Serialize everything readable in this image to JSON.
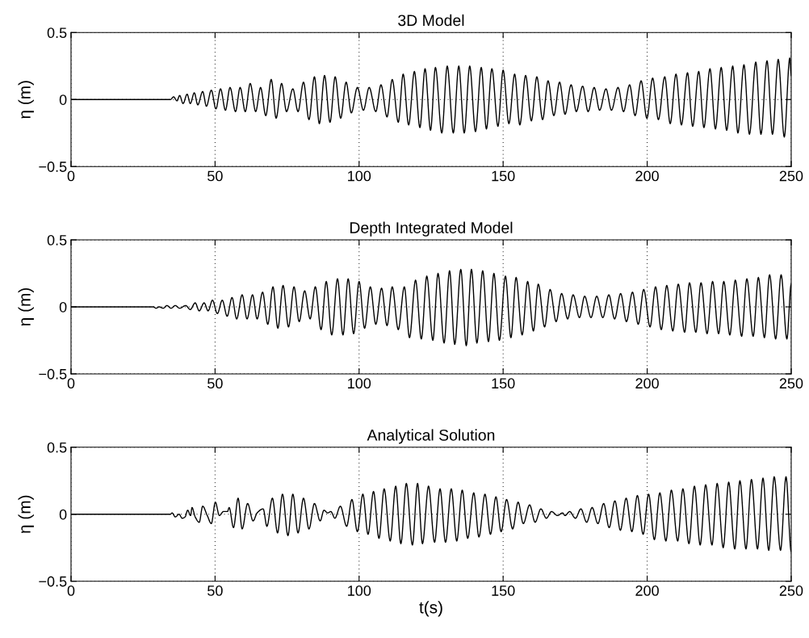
{
  "chart_data": [
    {
      "type": "line",
      "title": "3D Model",
      "ylabel": "η (m)",
      "xlim": [
        0,
        250
      ],
      "xticks": [
        0,
        50,
        100,
        150,
        200,
        250
      ],
      "ylim": [
        -0.5,
        0.5
      ],
      "yticks": [
        -0.5,
        0,
        0.5
      ],
      "grid": true,
      "series": [
        {
          "color": "#000000",
          "x": [
            0,
            34.5,
            35.6,
            36.8,
            37.7,
            38.9,
            40.3,
            41.4,
            42.8,
            44.0,
            45.7,
            47.0,
            48.7,
            50.3,
            51.9,
            53.6,
            55.2,
            57.1,
            58.7,
            60.5,
            62.2,
            64.1,
            65.8,
            67.6,
            69.5,
            71.2,
            73.1,
            74.8,
            77.0,
            78.8,
            80.7,
            82.6,
            84.5,
            86.2,
            88.0,
            89.9,
            91.7,
            93.6,
            95.5,
            97.3,
            99.4,
            101.5,
            103.5,
            105.8,
            107.6,
            109.7,
            111.5,
            113.6,
            115.3,
            117.2,
            119.2,
            121.1,
            122.9,
            124.8,
            126.5,
            128.7,
            130.6,
            132.7,
            134.6,
            136.5,
            138.4,
            140.4,
            142.4,
            144.2,
            146.1,
            148.2,
            150.0,
            152.0,
            154.0,
            155.8,
            157.8,
            159.8,
            161.7,
            163.7,
            165.6,
            167.6,
            169.6,
            171.5,
            173.6,
            175.4,
            177.6,
            179.5,
            181.6,
            183.5,
            185.7,
            187.6,
            189.9,
            191.8,
            193.9,
            195.8,
            197.9,
            199.9,
            201.9,
            203.9,
            206.1,
            208.0,
            210.0,
            211.9,
            214.0,
            215.8,
            217.9,
            219.7,
            221.8,
            223.7,
            225.7,
            227.6,
            229.7,
            231.5,
            233.6,
            235.5,
            237.7,
            239.5,
            241.6,
            243.5,
            245.5,
            247.6,
            249.5,
            250
          ],
          "values": [
            0,
            0,
            0.02,
            -0.01,
            0.03,
            -0.03,
            0.04,
            -0.03,
            0.05,
            -0.04,
            0.06,
            -0.05,
            0.07,
            -0.07,
            0.08,
            -0.08,
            0.09,
            -0.09,
            0.09,
            -0.09,
            0.12,
            -0.09,
            0.09,
            -0.12,
            0.15,
            -0.14,
            0.12,
            -0.09,
            0.08,
            -0.09,
            0.13,
            -0.15,
            0.17,
            -0.18,
            0.18,
            -0.17,
            0.17,
            -0.14,
            0.13,
            -0.1,
            0.09,
            -0.08,
            0.09,
            -0.09,
            0.11,
            -0.13,
            0.15,
            -0.17,
            0.19,
            -0.19,
            0.21,
            -0.21,
            0.23,
            -0.23,
            0.24,
            -0.25,
            0.25,
            -0.25,
            0.25,
            -0.25,
            0.25,
            -0.24,
            0.24,
            -0.22,
            0.23,
            -0.2,
            0.22,
            -0.18,
            0.19,
            -0.19,
            0.18,
            -0.16,
            0.17,
            -0.15,
            0.14,
            -0.12,
            0.13,
            -0.11,
            0.11,
            -0.09,
            0.1,
            -0.09,
            0.09,
            -0.08,
            0.08,
            -0.08,
            0.09,
            -0.09,
            0.11,
            -0.12,
            0.14,
            -0.14,
            0.16,
            -0.15,
            0.17,
            -0.18,
            0.19,
            -0.19,
            0.2,
            -0.2,
            0.21,
            -0.21,
            0.23,
            -0.22,
            0.24,
            -0.23,
            0.25,
            -0.25,
            0.26,
            -0.26,
            0.28,
            -0.26,
            0.29,
            -0.26,
            0.3,
            -0.28,
            0.31,
            0.18
          ]
        }
      ]
    },
    {
      "type": "line",
      "title": "Depth Integrated Model",
      "ylabel": "η (m)",
      "xlim": [
        0,
        250
      ],
      "xticks": [
        0,
        50,
        100,
        150,
        200,
        250
      ],
      "ylim": [
        -0.5,
        0.5
      ],
      "yticks": [
        -0.5,
        0,
        0.5
      ],
      "grid": true,
      "series": [
        {
          "color": "#000000",
          "x": [
            0,
            25,
            28.6,
            29.5,
            30.6,
            32.0,
            33.3,
            34.7,
            36.2,
            37.7,
            39.8,
            41.4,
            43.1,
            44.5,
            46.2,
            47.6,
            49.1,
            50.8,
            52.5,
            54.2,
            55.9,
            57.5,
            59.4,
            61.1,
            63.0,
            64.6,
            66.5,
            68.3,
            70.1,
            71.8,
            73.6,
            75.5,
            77.4,
            79.2,
            81.1,
            83.0,
            84.8,
            86.8,
            88.6,
            90.5,
            92.5,
            94.4,
            96.2,
            98.1,
            100.0,
            101.9,
            103.9,
            105.8,
            107.8,
            109.7,
            111.5,
            113.6,
            115.7,
            117.5,
            119.6,
            121.6,
            123.5,
            125.6,
            127.4,
            129.5,
            131.4,
            133.2,
            135.3,
            137.2,
            139.0,
            140.9,
            142.9,
            144.9,
            146.8,
            148.7,
            150.8,
            152.7,
            154.5,
            156.6,
            158.5,
            160.5,
            162.2,
            164.4,
            166.3,
            168.4,
            170.3,
            172.4,
            174.3,
            176.5,
            178.3,
            180.5,
            182.5,
            184.6,
            186.7,
            188.7,
            190.8,
            192.8,
            194.9,
            196.9,
            198.8,
            201.0,
            202.9,
            204.9,
            206.8,
            208.9,
            210.8,
            213.0,
            214.7,
            216.9,
            218.7,
            220.8,
            222.7,
            224.8,
            226.6,
            228.7,
            230.6,
            232.8,
            234.6,
            236.8,
            238.6,
            240.7,
            242.5,
            244.6,
            246.5,
            248.5,
            250
          ],
          "values": [
            0,
            0,
            0.0,
            -0.01,
            0.0,
            -0.01,
            0.01,
            -0.01,
            0.01,
            -0.01,
            0.01,
            -0.02,
            0.03,
            -0.03,
            0.03,
            -0.03,
            0.05,
            -0.05,
            0.05,
            -0.07,
            0.07,
            -0.09,
            0.09,
            -0.09,
            0.09,
            -0.09,
            0.11,
            -0.13,
            0.15,
            -0.16,
            0.16,
            -0.15,
            0.15,
            -0.11,
            0.12,
            -0.09,
            0.15,
            -0.17,
            0.19,
            -0.21,
            0.21,
            -0.21,
            0.21,
            -0.2,
            0.19,
            -0.16,
            0.15,
            -0.13,
            0.14,
            -0.14,
            0.15,
            -0.17,
            0.15,
            -0.23,
            0.2,
            -0.24,
            0.23,
            -0.25,
            0.25,
            -0.27,
            0.27,
            -0.28,
            0.28,
            -0.29,
            0.28,
            -0.27,
            0.27,
            -0.26,
            0.25,
            -0.25,
            0.23,
            -0.23,
            0.22,
            -0.21,
            0.19,
            -0.18,
            0.17,
            -0.15,
            0.13,
            -0.11,
            0.1,
            -0.09,
            0.09,
            -0.08,
            0.08,
            -0.08,
            0.08,
            -0.08,
            0.09,
            -0.09,
            0.1,
            -0.11,
            0.11,
            -0.13,
            0.13,
            -0.15,
            0.15,
            -0.17,
            0.16,
            -0.18,
            0.17,
            -0.19,
            0.18,
            -0.19,
            0.18,
            -0.2,
            0.19,
            -0.2,
            0.19,
            -0.21,
            0.2,
            -0.22,
            0.21,
            -0.22,
            0.22,
            -0.23,
            0.24,
            -0.24,
            0.24,
            -0.24,
            0.17
          ]
        }
      ]
    },
    {
      "type": "line",
      "title": "Analytical Solution",
      "xlabel": "t(s)",
      "ylabel": "η (m)",
      "xlim": [
        0,
        250
      ],
      "xticks": [
        0,
        50,
        100,
        150,
        200,
        250
      ],
      "ylim": [
        -0.5,
        0.5
      ],
      "yticks": [
        -0.5,
        0,
        0.5
      ],
      "grid": true,
      "series": [
        {
          "color": "#000000",
          "x": [
            0,
            34.5,
            35.1,
            36.2,
            37.5,
            38.6,
            39.6,
            40.5,
            41.5,
            42.0,
            43.1,
            44.5,
            45.7,
            47.3,
            48.7,
            50.1,
            51.5,
            52.9,
            54.3,
            54.9,
            56.4,
            58.0,
            59.4,
            61.3,
            63.2,
            64.6,
            66.7,
            68.0,
            69.9,
            71.7,
            73.4,
            75.3,
            77.0,
            78.8,
            80.7,
            82.6,
            84.5,
            86.5,
            87.8,
            89.1,
            90.2,
            91.6,
            93.5,
            95.7,
            97.5,
            99.4,
            101.3,
            103.1,
            105.0,
            106.9,
            108.7,
            110.8,
            112.7,
            114.5,
            116.4,
            118.5,
            120.3,
            122.0,
            124.1,
            126.2,
            128.1,
            130.0,
            132.0,
            133.9,
            135.8,
            137.7,
            139.8,
            141.6,
            143.7,
            145.6,
            147.5,
            149.3,
            151.2,
            153.3,
            155.2,
            157.0,
            159.2,
            161.1,
            163.1,
            165.0,
            166.8,
            168.9,
            170.6,
            171.5,
            173.1,
            175.1,
            177.0,
            179.0,
            180.9,
            182.9,
            184.9,
            186.8,
            188.8,
            190.7,
            192.7,
            194.7,
            196.6,
            198.6,
            200.5,
            202.5,
            204.4,
            206.5,
            208.4,
            210.6,
            212.4,
            214.5,
            216.4,
            218.4,
            220.3,
            222.5,
            224.3,
            226.4,
            228.3,
            230.4,
            232.2,
            234.3,
            236.2,
            238.3,
            240.2,
            242.2,
            244.1,
            246.3,
            248.2,
            250
          ],
          "values": [
            0,
            0,
            0.01,
            -0.02,
            0.0,
            -0.03,
            -0.02,
            0.03,
            -0.01,
            0.05,
            -0.02,
            -0.06,
            0.06,
            -0.01,
            -0.07,
            0.09,
            -0.01,
            0.02,
            0.02,
            0.05,
            -0.1,
            0.12,
            -0.11,
            0.08,
            -0.05,
            0.01,
            0.04,
            -0.09,
            0.12,
            -0.14,
            0.15,
            -0.16,
            0.15,
            -0.14,
            0.12,
            -0.11,
            0.08,
            -0.05,
            0.03,
            0.01,
            0.02,
            -0.03,
            0.06,
            -0.09,
            0.11,
            -0.13,
            0.15,
            -0.15,
            0.17,
            -0.18,
            0.19,
            -0.2,
            0.21,
            -0.22,
            0.23,
            -0.23,
            0.23,
            -0.22,
            0.21,
            -0.21,
            0.19,
            -0.21,
            0.19,
            -0.2,
            0.18,
            -0.18,
            0.16,
            -0.17,
            0.15,
            -0.15,
            0.13,
            -0.13,
            0.11,
            -0.11,
            0.09,
            -0.07,
            0.07,
            -0.06,
            0.04,
            -0.03,
            0.02,
            -0.01,
            0.01,
            -0.01,
            0.02,
            -0.03,
            0.04,
            -0.06,
            0.05,
            -0.07,
            0.08,
            -0.1,
            0.1,
            -0.12,
            0.12,
            -0.13,
            0.14,
            -0.15,
            0.15,
            -0.19,
            0.16,
            -0.2,
            0.18,
            -0.2,
            0.19,
            -0.22,
            0.21,
            -0.23,
            0.22,
            -0.23,
            0.23,
            -0.25,
            0.24,
            -0.26,
            0.25,
            -0.26,
            0.26,
            -0.26,
            0.27,
            -0.27,
            0.28,
            -0.27,
            0.28,
            -0.28
          ]
        }
      ]
    }
  ]
}
